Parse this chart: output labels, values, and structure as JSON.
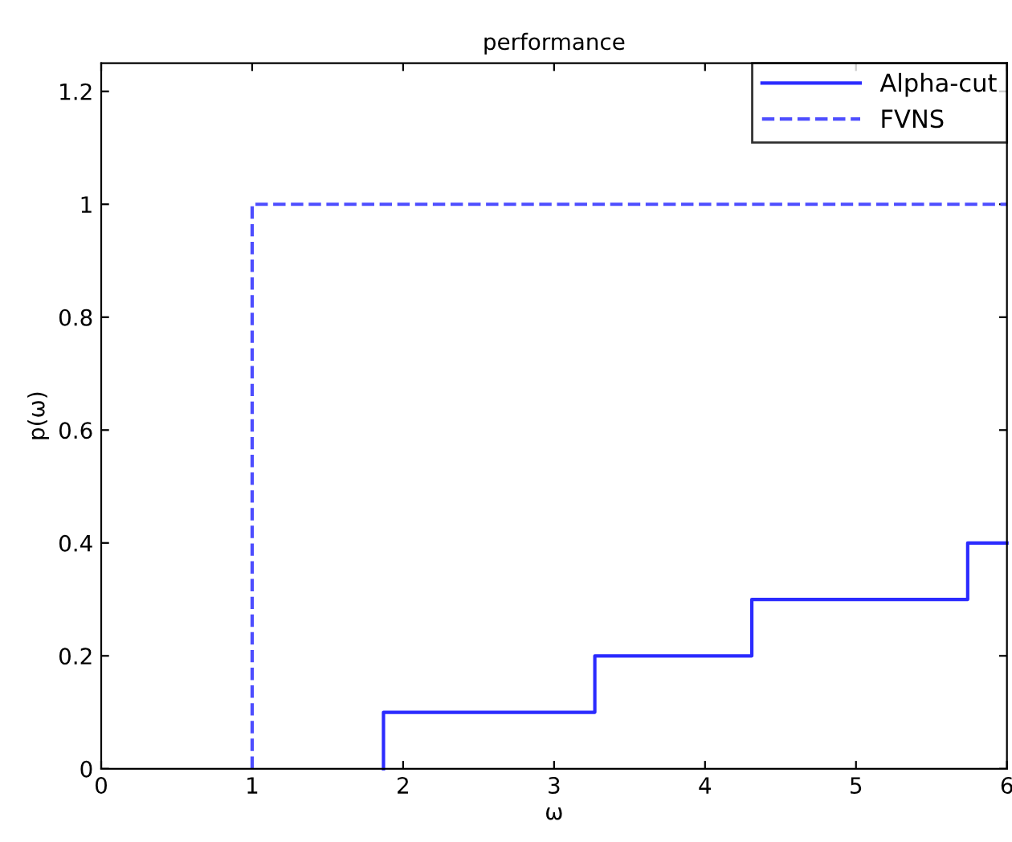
{
  "chart_data": {
    "type": "step",
    "title": "performance",
    "xlabel": "ω",
    "ylabel": "p(ω)",
    "series": [
      {
        "name": "Alpha-cut",
        "color": "#2b2bff",
        "line_style": "solid",
        "x": [
          1.87,
          1.87,
          3.27,
          4.31,
          5.74,
          6
        ],
        "values": [
          0,
          0.1,
          0.2,
          0.3,
          0.4,
          0.4
        ]
      },
      {
        "name": "FVNS",
        "color": "#4d4dff",
        "line_style": "dashed",
        "x": [
          1,
          1,
          6
        ],
        "values": [
          0,
          1,
          1
        ]
      }
    ],
    "xlim": [
      0,
      6
    ],
    "xticks": [
      0,
      1,
      2,
      3,
      4,
      5,
      6
    ],
    "ylim": [
      0,
      1.25
    ],
    "yticks": [
      0,
      0.2,
      0.4,
      0.6,
      0.8,
      1,
      1.2
    ],
    "grid": false,
    "legend": "top right"
  }
}
